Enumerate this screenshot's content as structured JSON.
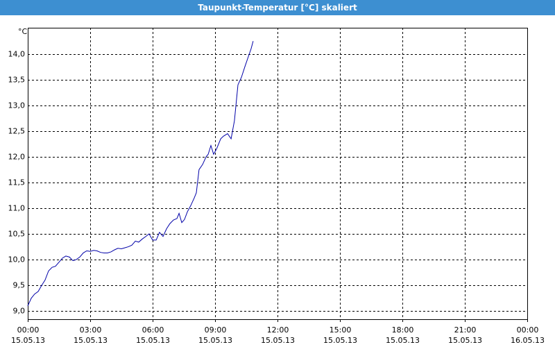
{
  "chart_data": {
    "type": "line",
    "title": "Taupunkt-Temperatur [°C] skaliert",
    "y_label": "°C",
    "color": "#0000a8",
    "grid": true,
    "xlim": [
      0,
      24
    ],
    "ylim": [
      8.84,
      14.51
    ],
    "xticks": [
      {
        "value": 0,
        "label": "00:00",
        "date": "15.05.13"
      },
      {
        "value": 3,
        "label": "03:00",
        "date": "15.05.13"
      },
      {
        "value": 6,
        "label": "06:00",
        "date": "15.05.13"
      },
      {
        "value": 9,
        "label": "09:00",
        "date": "15.05.13"
      },
      {
        "value": 12,
        "label": "12:00",
        "date": "15.05.13"
      },
      {
        "value": 15,
        "label": "15:00",
        "date": "15.05.13"
      },
      {
        "value": 18,
        "label": "18:00",
        "date": "15.05.13"
      },
      {
        "value": 21,
        "label": "21:00",
        "date": "15.05.13"
      },
      {
        "value": 24,
        "label": "00:00",
        "date": "16.05.13"
      }
    ],
    "yticks": [
      {
        "value": 9.0,
        "label": "9,0"
      },
      {
        "value": 9.5,
        "label": "9,5"
      },
      {
        "value": 10.0,
        "label": "10,0"
      },
      {
        "value": 10.5,
        "label": "10,5"
      },
      {
        "value": 11.0,
        "label": "11,0"
      },
      {
        "value": 11.5,
        "label": "11,5"
      },
      {
        "value": 12.0,
        "label": "12,0"
      },
      {
        "value": 12.5,
        "label": "12,5"
      },
      {
        "value": 13.0,
        "label": "13,0"
      },
      {
        "value": 13.5,
        "label": "13,5"
      },
      {
        "value": 14.0,
        "label": "14,0"
      }
    ],
    "x": [
      0,
      0.17,
      0.33,
      0.5,
      0.67,
      0.83,
      1.0,
      1.17,
      1.33,
      1.5,
      1.67,
      1.83,
      2.0,
      2.17,
      2.33,
      2.5,
      2.67,
      2.83,
      3.0,
      3.17,
      3.33,
      3.5,
      3.67,
      3.83,
      4.0,
      4.17,
      4.33,
      4.5,
      4.67,
      4.83,
      5.0,
      5.17,
      5.33,
      5.5,
      5.67,
      5.83,
      6.0,
      6.17,
      6.33,
      6.5,
      6.67,
      6.83,
      7.0,
      7.17,
      7.27,
      7.4,
      7.53,
      7.67,
      7.83,
      8.0,
      8.1,
      8.23,
      8.4,
      8.57,
      8.67,
      8.8,
      8.93,
      9.07,
      9.27,
      9.4,
      9.6,
      9.77,
      9.93,
      10.1,
      10.27,
      10.43,
      10.6,
      10.73,
      10.83
    ],
    "y": [
      9.1,
      9.25,
      9.33,
      9.38,
      9.5,
      9.6,
      9.78,
      9.85,
      9.87,
      9.95,
      10.03,
      10.07,
      10.05,
      9.98,
      10.0,
      10.05,
      10.13,
      10.17,
      10.16,
      10.18,
      10.17,
      10.14,
      10.13,
      10.13,
      10.15,
      10.19,
      10.22,
      10.21,
      10.23,
      10.25,
      10.28,
      10.36,
      10.34,
      10.4,
      10.45,
      10.5,
      10.38,
      10.38,
      10.53,
      10.45,
      10.6,
      10.7,
      10.77,
      10.8,
      10.9,
      10.72,
      10.78,
      10.93,
      11.05,
      11.2,
      11.3,
      11.75,
      11.85,
      12.0,
      12.05,
      12.22,
      12.05,
      12.15,
      12.35,
      12.4,
      12.45,
      12.35,
      12.7,
      13.4,
      13.55,
      13.75,
      13.95,
      14.1,
      14.25
    ]
  }
}
